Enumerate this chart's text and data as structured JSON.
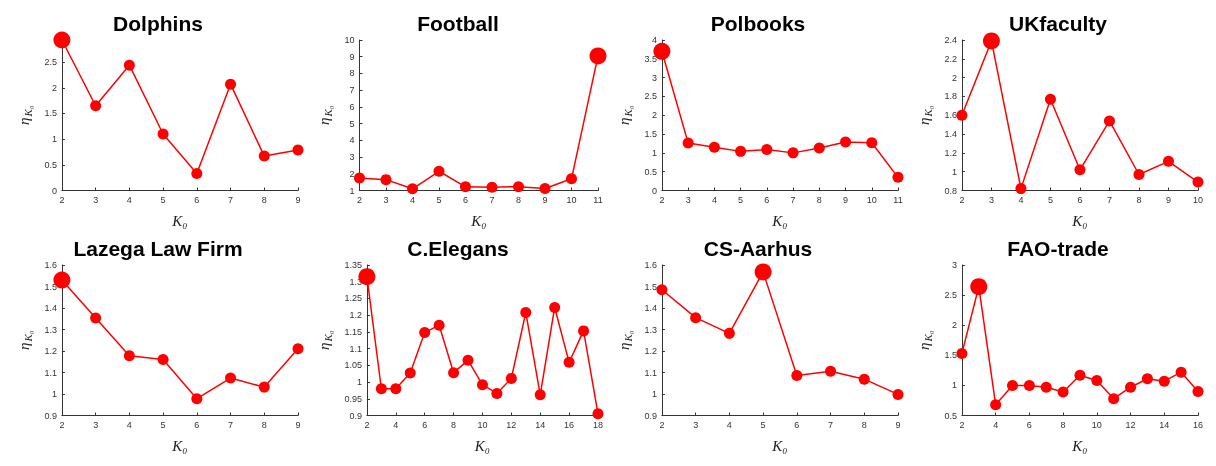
{
  "chart_data": [
    {
      "type": "line",
      "title": "Dolphins",
      "xlabel": "K₀",
      "ylabel": "η$_{K₀}$",
      "x": [
        2,
        3,
        4,
        5,
        6,
        7,
        8,
        9
      ],
      "series": [
        {
          "color": "#ff0000",
          "values": [
            2.93,
            1.65,
            2.44,
            1.1,
            0.33,
            2.07,
            0.67,
            0.79
          ]
        }
      ],
      "xlim": [
        2,
        9
      ],
      "xticks": [
        2,
        3,
        4,
        5,
        6,
        7,
        8,
        9
      ],
      "ylim": [
        0,
        2.93
      ],
      "yticks": [
        0,
        0.5,
        1,
        1.5,
        2,
        2.5
      ],
      "grid": false,
      "marker": "circle",
      "line_style": "solid"
    },
    {
      "type": "line",
      "title": "Football",
      "xlabel": "K₀",
      "ylabel": "η$_{K₀}$",
      "x": [
        2,
        3,
        4,
        5,
        6,
        7,
        8,
        9,
        10,
        11
      ],
      "series": [
        {
          "color": "#ff0000",
          "values": [
            1.75,
            1.65,
            1.1,
            2.15,
            1.22,
            1.2,
            1.23,
            1.12,
            1.7,
            9.05
          ]
        }
      ],
      "xlim": [
        2,
        11
      ],
      "xticks": [
        2,
        3,
        4,
        5,
        6,
        7,
        8,
        9,
        10,
        11
      ],
      "ylim": [
        1,
        10
      ],
      "yticks": [
        1,
        2,
        3,
        4,
        5,
        6,
        7,
        8,
        9,
        10
      ],
      "grid": false,
      "marker": "circle",
      "line_style": "solid"
    },
    {
      "type": "line",
      "title": "Polbooks",
      "xlabel": "K₀",
      "ylabel": "η$_{K₀}$",
      "x": [
        2,
        3,
        4,
        5,
        6,
        7,
        8,
        9,
        10,
        11
      ],
      "series": [
        {
          "color": "#ff0000",
          "values": [
            3.7,
            1.26,
            1.15,
            1.04,
            1.09,
            1.0,
            1.13,
            1.29,
            1.27,
            0.35
          ]
        }
      ],
      "xlim": [
        2,
        11
      ],
      "xticks": [
        2,
        3,
        4,
        5,
        6,
        7,
        8,
        9,
        10,
        11
      ],
      "ylim": [
        0,
        4
      ],
      "yticks": [
        0,
        0.5,
        1,
        1.5,
        2,
        2.5,
        3,
        3.5,
        4
      ],
      "grid": false,
      "marker": "circle",
      "line_style": "solid"
    },
    {
      "type": "line",
      "title": "UKfaculty",
      "xlabel": "K₀",
      "ylabel": "η$_{K₀}$",
      "x": [
        2,
        3,
        4,
        5,
        6,
        7,
        8,
        9,
        10
      ],
      "series": [
        {
          "color": "#ff0000",
          "values": [
            1.6,
            2.39,
            0.82,
            1.77,
            1.02,
            1.54,
            0.97,
            1.11,
            0.89
          ]
        }
      ],
      "xlim": [
        2,
        10
      ],
      "xticks": [
        2,
        3,
        4,
        5,
        6,
        7,
        8,
        9,
        10
      ],
      "ylim": [
        0.8,
        2.4
      ],
      "yticks": [
        0.8,
        1,
        1.2,
        1.4,
        1.6,
        1.8,
        2,
        2.2,
        2.4
      ],
      "grid": false,
      "marker": "circle",
      "line_style": "solid"
    },
    {
      "type": "line",
      "title": "Lazega Law Firm",
      "xlabel": "K₀",
      "ylabel": "η$_{K₀}$",
      "x": [
        2,
        3,
        4,
        5,
        6,
        7,
        8,
        9
      ],
      "series": [
        {
          "color": "#ff0000",
          "values": [
            1.53,
            1.354,
            1.178,
            1.16,
            0.978,
            1.074,
            1.032,
            1.21
          ]
        }
      ],
      "xlim": [
        2,
        9
      ],
      "xticks": [
        2,
        3,
        4,
        5,
        6,
        7,
        8,
        9
      ],
      "ylim": [
        0.9,
        1.6
      ],
      "yticks": [
        0.9,
        1,
        1.1,
        1.2,
        1.3,
        1.4,
        1.5,
        1.6
      ],
      "grid": false,
      "marker": "circle",
      "line_style": "solid"
    },
    {
      "type": "line",
      "title": "C.Elegans",
      "xlabel": "K₀",
      "ylabel": "η$_{K₀}$",
      "x": [
        2,
        3,
        4,
        5,
        6,
        7,
        8,
        9,
        10,
        11,
        12,
        13,
        14,
        15,
        16,
        17,
        18
      ],
      "series": [
        {
          "color": "#ff0000",
          "values": [
            1.315,
            0.98,
            0.98,
            1.027,
            1.148,
            1.17,
            1.028,
            1.065,
            0.992,
            0.966,
            1.011,
            1.208,
            0.962,
            1.223,
            1.059,
            1.153,
            0.905
          ]
        }
      ],
      "xlim": [
        2,
        18
      ],
      "xticks": [
        2,
        4,
        6,
        8,
        10,
        12,
        14,
        16,
        18
      ],
      "ylim": [
        0.9,
        1.35
      ],
      "yticks": [
        0.9,
        0.95,
        1,
        1.05,
        1.1,
        1.15,
        1.2,
        1.25,
        1.3,
        1.35
      ],
      "grid": false,
      "marker": "circle",
      "line_style": "solid"
    },
    {
      "type": "line",
      "title": "CS-Aarhus",
      "xlabel": "K₀",
      "ylabel": "η$_{K₀}$",
      "x": [
        2,
        3,
        4,
        5,
        6,
        7,
        8,
        9
      ],
      "series": [
        {
          "color": "#ff0000",
          "values": [
            1.485,
            1.355,
            1.282,
            1.568,
            1.086,
            1.106,
            1.069,
            0.998
          ]
        }
      ],
      "xlim": [
        2,
        9
      ],
      "xticks": [
        2,
        3,
        4,
        5,
        6,
        7,
        8,
        9
      ],
      "ylim": [
        0.9,
        1.6
      ],
      "yticks": [
        0.9,
        1,
        1.1,
        1.2,
        1.3,
        1.4,
        1.5,
        1.6
      ],
      "grid": false,
      "marker": "circle",
      "line_style": "solid"
    },
    {
      "type": "line",
      "title": "FAO-trade",
      "xlabel": "K₀",
      "ylabel": "η$_{K₀}$",
      "x": [
        2,
        3,
        4,
        5,
        6,
        7,
        8,
        9,
        10,
        11,
        12,
        13,
        14,
        15,
        16
      ],
      "series": [
        {
          "color": "#ff0000",
          "values": [
            1.53,
            2.64,
            0.68,
            1.0,
            1.0,
            0.97,
            0.89,
            1.17,
            1.08,
            0.78,
            0.97,
            1.11,
            1.07,
            1.22,
            0.9
          ]
        }
      ],
      "xlim": [
        2,
        16
      ],
      "xticks": [
        2,
        4,
        6,
        8,
        10,
        12,
        14,
        16
      ],
      "ylim": [
        0.5,
        3
      ],
      "yticks": [
        0.5,
        1,
        1.5,
        2,
        2.5,
        3
      ],
      "grid": false,
      "marker": "circle",
      "line_style": "solid"
    }
  ]
}
